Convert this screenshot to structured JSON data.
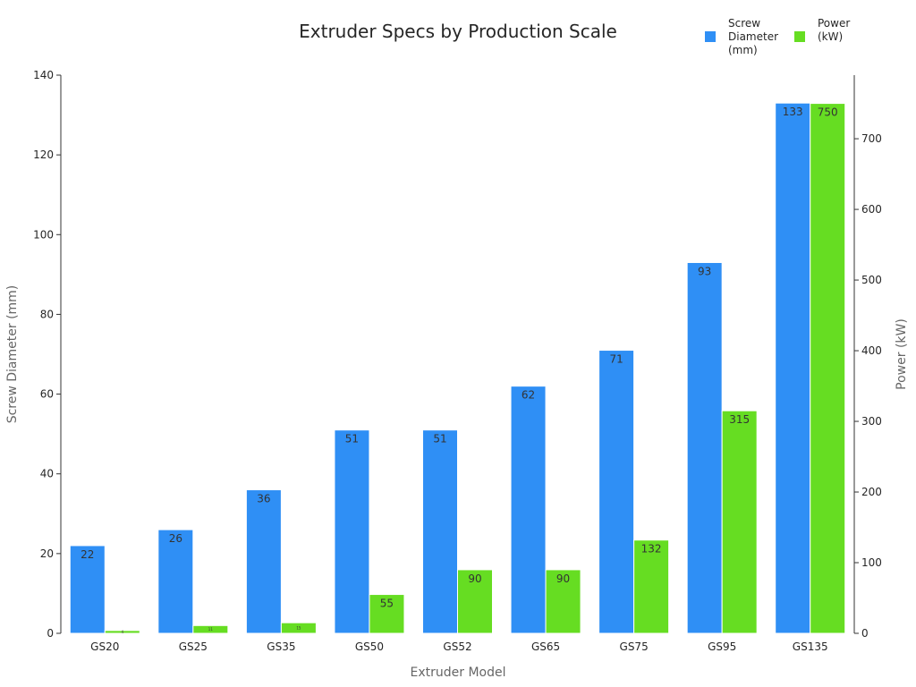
{
  "chart_data": {
    "type": "bar",
    "title": "Extruder Specs by Production Scale",
    "xlabel": "Extruder Model",
    "ylabel": "Screw Diameter (mm)",
    "y2label": "Power (kW)",
    "categories": [
      "GS20",
      "GS25",
      "GS35",
      "GS50",
      "GS52",
      "GS65",
      "GS75",
      "GS95",
      "GS135"
    ],
    "series": [
      {
        "name": "Screw Diameter (mm)",
        "legend_lines": [
          "Screw",
          "Diameter",
          "(mm)"
        ],
        "axis": "left",
        "color": "#2f8ff5",
        "values": [
          22,
          26,
          36,
          51,
          51,
          62,
          71,
          93,
          133
        ],
        "labels": [
          "22",
          "26",
          "36",
          "51",
          "51",
          "62",
          "71",
          "93",
          "133"
        ]
      },
      {
        "name": "Power (kW)",
        "legend_lines": [
          "Power",
          "(kW)"
        ],
        "axis": "right",
        "color": "#66dd22",
        "values": [
          4,
          11,
          15,
          55,
          90,
          90,
          132,
          315,
          750
        ],
        "labels": [
          "4",
          "11",
          "15",
          "55",
          "90",
          "90",
          "132",
          "315",
          "750"
        ]
      }
    ],
    "ylim": [
      0,
      140
    ],
    "y_ticks": [
      "0",
      "20",
      "40",
      "60",
      "80",
      "100",
      "120",
      "140"
    ],
    "y2lim": [
      0,
      790
    ],
    "y2_ticks": [
      "0",
      "100",
      "200",
      "300",
      "400",
      "500",
      "600",
      "700"
    ],
    "legend_position": "top-right",
    "grid": false
  }
}
